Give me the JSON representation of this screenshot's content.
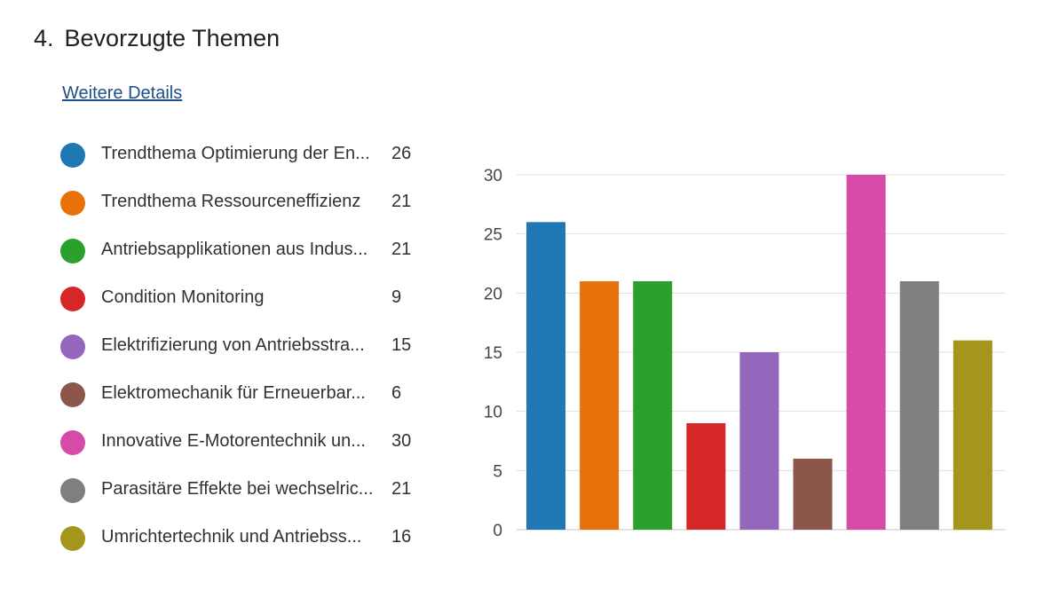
{
  "question": {
    "number": "4.",
    "title": "Bevorzugte Themen"
  },
  "details_link": "Weitere Details",
  "legend": [
    {
      "label": "Trendthema Optimierung der En...",
      "count": "26",
      "color": "#1f77b4"
    },
    {
      "label": "Trendthema Ressourceneffizienz",
      "count": "21",
      "color": "#e8710a"
    },
    {
      "label": "Antriebsapplikationen aus Indus...",
      "count": "21",
      "color": "#2ca02c"
    },
    {
      "label": "Condition Monitoring",
      "count": "9",
      "color": "#d62728"
    },
    {
      "label": "Elektrifizierung von Antriebsstra...",
      "count": "15",
      "color": "#9467bd"
    },
    {
      "label": "Elektromechanik für Erneuerbar...",
      "count": "6",
      "color": "#8c564b"
    },
    {
      "label": "Innovative E-Motorentechnik un...",
      "count": "30",
      "color": "#d64aa8"
    },
    {
      "label": "Parasitäre Effekte bei wechselric...",
      "count": "21",
      "color": "#7f7f7f"
    },
    {
      "label": "Umrichtertechnik und Antriebss...",
      "count": "16",
      "color": "#a4961c"
    }
  ],
  "chart_data": {
    "type": "bar",
    "categories": [
      "Trendthema Optimierung der En...",
      "Trendthema Ressourceneffizienz",
      "Antriebsapplikationen aus Indus...",
      "Condition Monitoring",
      "Elektrifizierung von Antriebsstra...",
      "Elektromechanik für Erneuerbar...",
      "Innovative E-Motorentechnik un...",
      "Parasitäre Effekte bei wechselric...",
      "Umrichtertechnik und Antriebss..."
    ],
    "values": [
      26,
      21,
      21,
      9,
      15,
      6,
      30,
      21,
      16
    ],
    "colors": [
      "#1f77b4",
      "#e8710a",
      "#2ca02c",
      "#d62728",
      "#9467bd",
      "#8c564b",
      "#d64aa8",
      "#7f7f7f",
      "#a4961c"
    ],
    "ylim": [
      0,
      30
    ],
    "yticks": [
      0,
      5,
      10,
      15,
      20,
      25,
      30
    ],
    "grid": true,
    "legend": "left"
  }
}
